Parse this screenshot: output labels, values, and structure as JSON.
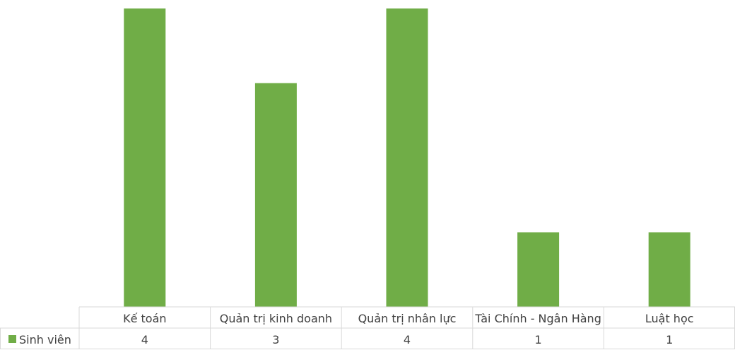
{
  "chart_data": {
    "type": "bar",
    "categories": [
      "Kế toán",
      "Quản trị kinh doanh",
      "Quản trị nhân lực",
      "Tài Chính - Ngân Hàng",
      "Luật học"
    ],
    "series": [
      {
        "name": "Sinh viên",
        "values": [
          4,
          3,
          4,
          1,
          1
        ],
        "color": "#70ad47"
      }
    ],
    "ylim": [
      0,
      4
    ],
    "grid": false,
    "legend": "data-table",
    "title": "",
    "xlabel": "",
    "ylabel": ""
  }
}
